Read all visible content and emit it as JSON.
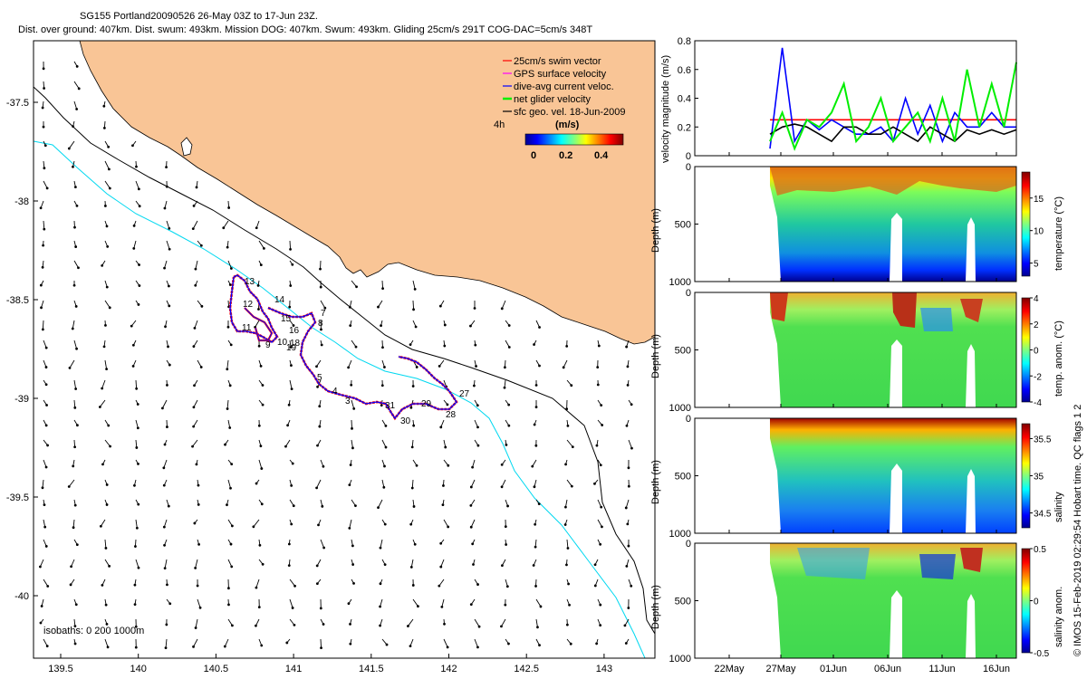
{
  "title": {
    "line1": "SG155 Portland20090526 26-May 03Z to 17-Jun 23Z.",
    "line2": "Dist. over ground: 407km. Dist. swum: 493km. Mission DOG: 407km. Swum: 493km. Gliding 25cm/s 291T COG-DAC=5cm/s 348T"
  },
  "colors": {
    "land": "#f9c596",
    "isobath_shallow": "#00d8f0",
    "isobath_deep": "#000000",
    "track_red": "#ff0000",
    "track_blue": "#0000ff",
    "net_green": "#00ee00",
    "gps_magenta": "#ff00ff"
  },
  "map": {
    "x_ticks": [
      "139.5",
      "140",
      "140.5",
      "141",
      "141.5",
      "142",
      "142.5",
      "143"
    ],
    "y_ticks": [
      "-37.5",
      "-38",
      "-38.5",
      "-39",
      "-39.5",
      "-40"
    ],
    "legend": [
      {
        "label": "25cm/s swim vector",
        "color": "#ff0000"
      },
      {
        "label": "GPS surface velocity",
        "color": "#ff00ff"
      },
      {
        "label": "dive-avg current veloc.",
        "color": "#0000ff"
      },
      {
        "label": "net glider velocity",
        "color": "#00ee00"
      },
      {
        "label": "sfc geo. vel. 18-Jun-2009",
        "color": "#000000"
      }
    ],
    "scale_label": "4h",
    "colorbar_title": "(m/s)",
    "colorbar_ticks": [
      "0",
      "0.2",
      "0.4"
    ],
    "isobaths_label": "isobaths: 0   200  1000m",
    "day_labels": [
      "13",
      "14",
      "12",
      "15",
      "7",
      "8",
      "11",
      "16",
      "9",
      "18",
      "10",
      "19",
      "5",
      "4",
      "3",
      "31",
      "29",
      "30",
      "27",
      "28"
    ]
  },
  "chart_data": [
    {
      "type": "line",
      "title": "velocity magnitude",
      "ylabel": "velocity magnitude (m/s)",
      "ylim": [
        0,
        0.8
      ],
      "yticks": [
        "0",
        "0.2",
        "0.4",
        "0.6",
        "0.8"
      ],
      "series": [
        {
          "name": "swim 25cm/s",
          "color": "#ff0000",
          "values": [
            0.25,
            0.25,
            0.25,
            0.25,
            0.25,
            0.25,
            0.25,
            0.25,
            0.25,
            0.25,
            0.25,
            0.25,
            0.25,
            0.25,
            0.25,
            0.25,
            0.25,
            0.25,
            0.25,
            0.25,
            0.25
          ]
        },
        {
          "name": "dive-avg current",
          "color": "#0000ff",
          "values": [
            0.05,
            0.75,
            0.1,
            0.25,
            0.18,
            0.25,
            0.2,
            0.15,
            0.15,
            0.2,
            0.1,
            0.4,
            0.15,
            0.35,
            0.1,
            0.3,
            0.2,
            0.2,
            0.3,
            0.2,
            0.2
          ]
        },
        {
          "name": "sfc geo",
          "color": "#000000",
          "values": [
            0.15,
            0.2,
            0.22,
            0.2,
            0.15,
            0.1,
            0.2,
            0.2,
            0.15,
            0.15,
            0.2,
            0.15,
            0.1,
            0.2,
            0.15,
            0.1,
            0.18,
            0.15,
            0.18,
            0.15,
            0.18
          ]
        },
        {
          "name": "net glider",
          "color": "#00ee00",
          "values": [
            0.1,
            0.3,
            0.05,
            0.25,
            0.2,
            0.3,
            0.5,
            0.1,
            0.2,
            0.4,
            0.1,
            0.2,
            0.3,
            0.1,
            0.4,
            0.1,
            0.6,
            0.2,
            0.5,
            0.2,
            0.65
          ]
        }
      ]
    },
    {
      "type": "heatmap",
      "ylabel": "Depth (m)",
      "ylim": [
        1000,
        0
      ],
      "yticks": [
        "0",
        "500",
        "1000"
      ],
      "colorbar_label": "temperature (°C)",
      "colorbar_ticks": [
        "5",
        "10",
        "15"
      ],
      "clim": [
        3,
        19
      ]
    },
    {
      "type": "heatmap",
      "ylabel": "Depth (m)",
      "ylim": [
        1000,
        0
      ],
      "yticks": [
        "0",
        "500",
        "1000"
      ],
      "colorbar_label": "temp. anom. (°C)",
      "colorbar_ticks": [
        "-4",
        "-2",
        "0",
        "2",
        "4"
      ],
      "clim": [
        -4,
        4
      ]
    },
    {
      "type": "heatmap",
      "ylabel": "Depth (m)",
      "ylim": [
        1000,
        0
      ],
      "yticks": [
        "0",
        "500",
        "1000"
      ],
      "colorbar_label": "salinity",
      "colorbar_ticks": [
        "34.5",
        "35",
        "35.5"
      ],
      "clim": [
        34.3,
        35.7
      ]
    },
    {
      "type": "heatmap",
      "ylabel": "Depth (m)",
      "ylim": [
        1000,
        0
      ],
      "yticks": [
        "0",
        "500",
        "1000"
      ],
      "colorbar_label": "salinity anom.",
      "colorbar_ticks": [
        "-0.5",
        "0",
        "0.5"
      ],
      "clim": [
        -0.5,
        0.5
      ]
    }
  ],
  "time_axis": {
    "labels": [
      "22May",
      "27May",
      "01Jun",
      "06Jun",
      "11Jun",
      "16Jun"
    ]
  },
  "side_note": "© IMOS 15-Feb-2019 02:29:54 Hobart time. QC flags 1  2"
}
